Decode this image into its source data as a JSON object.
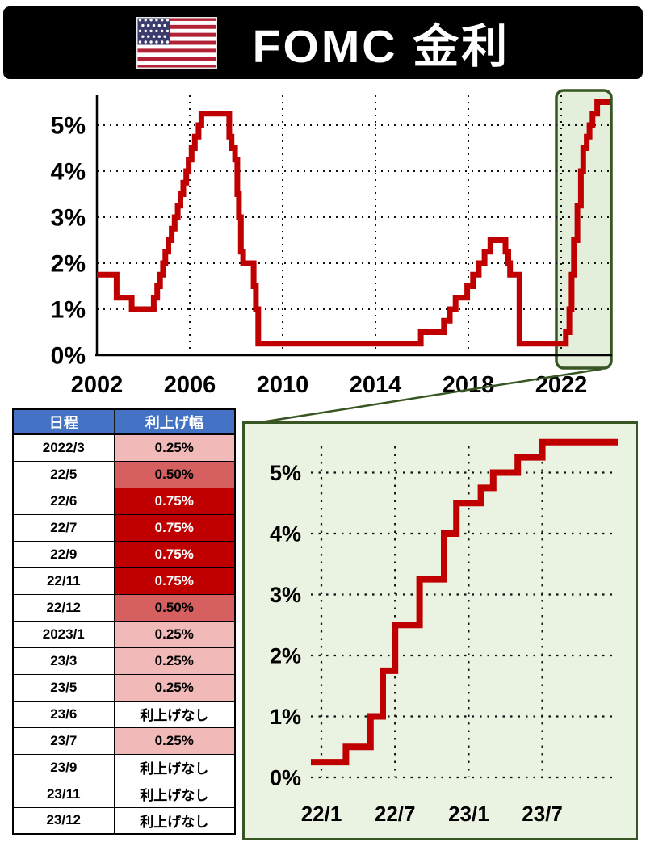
{
  "header": {
    "title": "FOMC 金利",
    "flag": "us-flag-icon"
  },
  "colors": {
    "line_red": "#C00000",
    "green_border": "#375623",
    "panel_green": "#EAF2E2",
    "table_header_blue": "#4472C4",
    "hike_small": "#F2B9B9",
    "hike_medium": "#D65F5F",
    "hike_large": "#C00000",
    "header_bg": "#000000"
  },
  "table": {
    "headers": [
      "日程",
      "利上げ幅"
    ],
    "no_hike_label": "利上げなし",
    "rows": [
      {
        "date": "2022/3",
        "hike": "0.25%",
        "level": "small"
      },
      {
        "date": "22/5",
        "hike": "0.50%",
        "level": "medium"
      },
      {
        "date": "22/6",
        "hike": "0.75%",
        "level": "large"
      },
      {
        "date": "22/7",
        "hike": "0.75%",
        "level": "large"
      },
      {
        "date": "22/9",
        "hike": "0.75%",
        "level": "large"
      },
      {
        "date": "22/11",
        "hike": "0.75%",
        "level": "large"
      },
      {
        "date": "22/12",
        "hike": "0.50%",
        "level": "medium"
      },
      {
        "date": "2023/1",
        "hike": "0.25%",
        "level": "small"
      },
      {
        "date": "23/3",
        "hike": "0.25%",
        "level": "small"
      },
      {
        "date": "23/5",
        "hike": "0.25%",
        "level": "small"
      },
      {
        "date": "23/6",
        "hike": "利上げなし",
        "level": "none"
      },
      {
        "date": "23/7",
        "hike": "0.25%",
        "level": "small"
      },
      {
        "date": "23/9",
        "hike": "利上げなし",
        "level": "none"
      },
      {
        "date": "23/11",
        "hike": "利上げなし",
        "level": "none"
      },
      {
        "date": "23/12",
        "hike": "利上げなし",
        "level": "none"
      }
    ]
  },
  "chart_data": [
    {
      "type": "line",
      "step": true,
      "name": "fomc-rate-history",
      "line_color": "#C00000",
      "grid": "dotted",
      "xlim": [
        2002,
        2024
      ],
      "ylim": [
        0,
        5.6
      ],
      "xticks": [
        {
          "v": 2002,
          "label": "2002"
        },
        {
          "v": 2006,
          "label": "2006"
        },
        {
          "v": 2010,
          "label": "2010"
        },
        {
          "v": 2014,
          "label": "2014"
        },
        {
          "v": 2018,
          "label": "2018"
        },
        {
          "v": 2022,
          "label": "2022"
        }
      ],
      "yticks": [
        {
          "v": 0,
          "label": "0%"
        },
        {
          "v": 1,
          "label": "1%"
        },
        {
          "v": 2,
          "label": "2%"
        },
        {
          "v": 3,
          "label": "3%"
        },
        {
          "v": 4,
          "label": "4%"
        },
        {
          "v": 5,
          "label": "5%"
        }
      ],
      "highlight_region": {
        "x_start": 2021.8,
        "x_end": 2024,
        "stroke": "#375623"
      },
      "x": [
        2002.0,
        2002.85,
        2003.5,
        2004.45,
        2004.6,
        2004.72,
        2004.85,
        2004.95,
        2005.08,
        2005.22,
        2005.35,
        2005.48,
        2005.6,
        2005.72,
        2005.85,
        2005.95,
        2006.08,
        2006.22,
        2006.38,
        2006.5,
        2007.7,
        2007.8,
        2007.95,
        2008.05,
        2008.12,
        2008.2,
        2008.3,
        2008.75,
        2008.85,
        2008.95,
        2015.95,
        2016.95,
        2017.2,
        2017.45,
        2017.95,
        2018.2,
        2018.45,
        2018.7,
        2018.95,
        2019.6,
        2019.72,
        2019.8,
        2020.2,
        2022.2,
        2022.35,
        2022.45,
        2022.55,
        2022.7,
        2022.85,
        2022.95,
        2023.1,
        2023.22,
        2023.35,
        2023.55,
        2023.92
      ],
      "y": [
        1.75,
        1.25,
        1.0,
        1.25,
        1.5,
        1.75,
        2.0,
        2.25,
        2.5,
        2.75,
        3.0,
        3.25,
        3.5,
        3.75,
        4.0,
        4.25,
        4.5,
        4.75,
        5.0,
        5.25,
        4.75,
        4.5,
        4.25,
        3.5,
        3.0,
        2.25,
        2.0,
        1.5,
        1.0,
        0.25,
        0.5,
        0.75,
        1.0,
        1.25,
        1.5,
        1.75,
        2.0,
        2.25,
        2.5,
        2.25,
        2.0,
        1.75,
        0.25,
        0.5,
        1.0,
        1.75,
        2.5,
        3.25,
        4.0,
        4.5,
        4.75,
        5.0,
        5.25,
        5.5,
        5.5
      ]
    },
    {
      "type": "line",
      "step": true,
      "name": "fomc-rate-2022-2023-zoom",
      "line_color": "#C00000",
      "grid": "dotted",
      "xlim": [
        0,
        24
      ],
      "ylim": [
        0,
        5.6
      ],
      "xticks": [
        {
          "v": 0,
          "label": "22/1"
        },
        {
          "v": 6,
          "label": "22/7"
        },
        {
          "v": 12,
          "label": "23/1"
        },
        {
          "v": 18,
          "label": "23/7"
        }
      ],
      "yticks": [
        {
          "v": 0,
          "label": "0%"
        },
        {
          "v": 1,
          "label": "1%"
        },
        {
          "v": 2,
          "label": "2%"
        },
        {
          "v": 3,
          "label": "3%"
        },
        {
          "v": 4,
          "label": "4%"
        },
        {
          "v": 5,
          "label": "5%"
        }
      ],
      "x": [
        0,
        2,
        4,
        5,
        6,
        8,
        10,
        11,
        13,
        14,
        16,
        18,
        23
      ],
      "x_dates": [
        "22/1",
        "22/3",
        "22/5",
        "22/6",
        "22/7",
        "22/9",
        "22/11",
        "22/12",
        "23/2",
        "23/3",
        "23/5",
        "23/7",
        "23/12"
      ],
      "y": [
        0.25,
        0.5,
        1.0,
        1.75,
        2.5,
        3.25,
        4.0,
        4.5,
        4.75,
        5.0,
        5.25,
        5.5,
        5.5
      ]
    }
  ]
}
